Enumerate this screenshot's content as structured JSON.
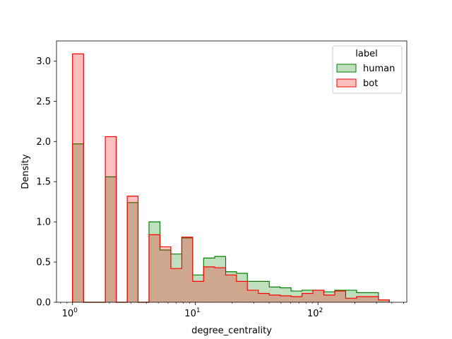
{
  "chart_data": {
    "type": "histogram",
    "x_scale": "log",
    "xlabel": "degree_centrality",
    "ylabel": "Density",
    "xlim": [
      0.74,
      530
    ],
    "ylim": [
      0,
      3.25
    ],
    "x_ticks": [
      {
        "value": 1,
        "base": "10",
        "exp": "0"
      },
      {
        "value": 10,
        "base": "10",
        "exp": "1"
      },
      {
        "value": 100,
        "base": "10",
        "exp": "2"
      }
    ],
    "y_ticks": [
      {
        "value": 0,
        "label": "0.0"
      },
      {
        "value": 0.5,
        "label": "0.5"
      },
      {
        "value": 1.0,
        "label": "1.0"
      },
      {
        "value": 1.5,
        "label": "1.5"
      },
      {
        "value": 2.0,
        "label": "2.0"
      },
      {
        "value": 2.5,
        "label": "2.5"
      },
      {
        "value": 3.0,
        "label": "3.0"
      }
    ],
    "bin_edges": [
      1.0,
      1.23,
      1.51,
      1.85,
      2.27,
      2.79,
      3.42,
      4.2,
      5.16,
      6.33,
      7.77,
      9.54,
      11.7,
      14.4,
      17.7,
      21.7,
      26.6,
      32.7,
      40.1,
      49.2,
      60.4,
      74.2,
      91.0,
      111.7,
      137.1,
      168.3,
      206.6,
      253.6,
      311.3,
      382.1
    ],
    "series": [
      {
        "name": "human",
        "stroke": "#008000",
        "fill": "#008000",
        "fill_opacity": 0.25,
        "values": [
          1.97,
          0,
          0,
          1.56,
          0,
          1.24,
          0,
          1.0,
          0.65,
          0.6,
          0.8,
          0.34,
          0.55,
          0.57,
          0.38,
          0.36,
          0.26,
          0.26,
          0.19,
          0.18,
          0.14,
          0.15,
          0.15,
          0.13,
          0.15,
          0.15,
          0.12,
          0.12,
          0.03
        ]
      },
      {
        "name": "bot",
        "stroke": "#ff0000",
        "fill": "#ff0000",
        "fill_opacity": 0.25,
        "values": [
          3.09,
          0,
          0,
          2.06,
          0,
          1.32,
          0,
          0.84,
          0.69,
          0.42,
          0.81,
          0.26,
          0.44,
          0.43,
          0.34,
          0.26,
          0.15,
          0.11,
          0.09,
          0.08,
          0.07,
          0.11,
          0.15,
          0.09,
          0.14,
          0.05,
          0.07,
          0.07,
          0.03
        ]
      }
    ],
    "legend": {
      "title": "label",
      "placement": "upper right",
      "entries": [
        "human",
        "bot"
      ]
    }
  }
}
